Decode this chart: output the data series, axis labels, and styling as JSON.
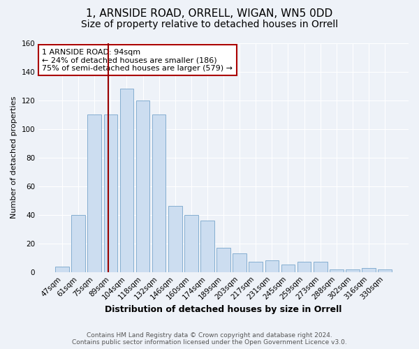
{
  "title1": "1, ARNSIDE ROAD, ORRELL, WIGAN, WN5 0DD",
  "title2": "Size of property relative to detached houses in Orrell",
  "xlabel": "Distribution of detached houses by size in Orrell",
  "ylabel": "Number of detached properties",
  "footnote1": "Contains HM Land Registry data © Crown copyright and database right 2024.",
  "footnote2": "Contains public sector information licensed under the Open Government Licence v3.0.",
  "categories": [
    "47sqm",
    "61sqm",
    "75sqm",
    "89sqm",
    "104sqm",
    "118sqm",
    "132sqm",
    "146sqm",
    "160sqm",
    "174sqm",
    "189sqm",
    "203sqm",
    "217sqm",
    "231sqm",
    "245sqm",
    "259sqm",
    "273sqm",
    "288sqm",
    "302sqm",
    "316sqm",
    "330sqm"
  ],
  "values": [
    4,
    40,
    110,
    110,
    128,
    120,
    110,
    46,
    40,
    36,
    17,
    13,
    7,
    8,
    5,
    7,
    7,
    2,
    2,
    3,
    2
  ],
  "bar_color": "#ccddf0",
  "bar_edge_color": "#85aed0",
  "vline_color": "#990000",
  "annotation_text": "1 ARNSIDE ROAD: 94sqm\n← 24% of detached houses are smaller (186)\n75% of semi-detached houses are larger (579) →",
  "annotation_box_color": "#ffffff",
  "annotation_box_edge_color": "#aa0000",
  "ylim": [
    0,
    160
  ],
  "yticks": [
    0,
    20,
    40,
    60,
    80,
    100,
    120,
    140,
    160
  ],
  "background_color": "#eef2f8",
  "plot_background_color": "#eef2f8",
  "title1_fontsize": 11,
  "title2_fontsize": 10,
  "xlabel_fontsize": 9,
  "ylabel_fontsize": 8,
  "tick_fontsize": 7.5,
  "annotation_fontsize": 8,
  "grid_color": "#ffffff"
}
